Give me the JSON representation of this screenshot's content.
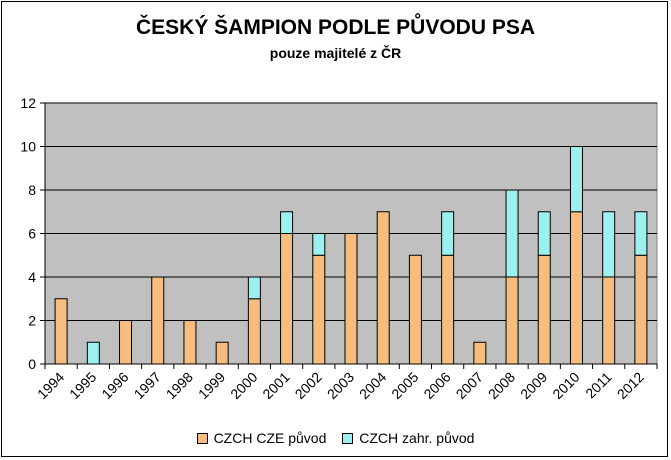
{
  "chart_data": {
    "type": "bar",
    "stacked": true,
    "title": "ČESKÝ ŠAMPION PODLE PŮVODU PSA",
    "subtitle": "pouze majitelé z ČR",
    "xlabel": "",
    "ylabel": "",
    "ylim": [
      0,
      12
    ],
    "yticks": [
      0,
      2,
      4,
      6,
      8,
      10,
      12
    ],
    "grid": true,
    "legend_position": "bottom",
    "categories": [
      "1994",
      "1995",
      "1996",
      "1997",
      "1998",
      "1999",
      "2000",
      "2001",
      "2002",
      "2003",
      "2004",
      "2005",
      "2006",
      "2007",
      "2008",
      "2009",
      "2010",
      "2011",
      "2012"
    ],
    "series": [
      {
        "name": "CZCH CZE původ",
        "color": "#f6bd7f",
        "values": [
          3,
          0,
          2,
          4,
          2,
          1,
          3,
          6,
          5,
          6,
          7,
          5,
          5,
          1,
          4,
          5,
          7,
          4,
          5
        ]
      },
      {
        "name": "CZCH zahr. původ",
        "color": "#9cf0f0",
        "values": [
          0,
          1,
          0,
          0,
          0,
          0,
          1,
          1,
          1,
          0,
          0,
          0,
          2,
          0,
          4,
          2,
          3,
          3,
          2
        ]
      }
    ],
    "plot_background": "#c0c0c0"
  }
}
